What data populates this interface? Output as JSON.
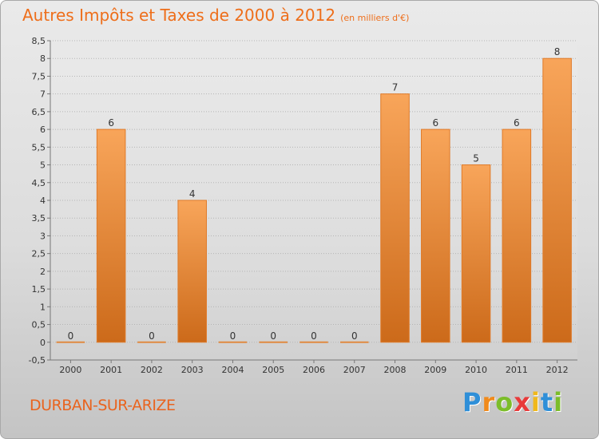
{
  "title": "Autres Impôts et Taxes de 2000 à 2012",
  "unit_note": "(en milliers d'€)",
  "commune": "DURBAN-SUR-ARIZE",
  "brand": {
    "letters": [
      "P",
      "r",
      "o",
      "x",
      "i",
      "t",
      "i"
    ],
    "colors": [
      "#2f8fd8",
      "#f08a1c",
      "#7cbd2a",
      "#e83a3a",
      "#f0b81c",
      "#2f8fd8",
      "#7cbd2a"
    ]
  },
  "colors": {
    "bar_light": "#f8a55a",
    "bar_dark": "#cc6a1a",
    "title": "#ee6e1a"
  },
  "chart_data": {
    "type": "bar",
    "categories": [
      "2000",
      "2001",
      "2002",
      "2003",
      "2004",
      "2005",
      "2006",
      "2007",
      "2008",
      "2009",
      "2010",
      "2011",
      "2012"
    ],
    "values": [
      0,
      6,
      0,
      4,
      0,
      0,
      0,
      0,
      7,
      6,
      5,
      6,
      8
    ],
    "data_labels": [
      "0",
      "6",
      "0",
      "4",
      "0",
      "0",
      "0",
      "0",
      "7",
      "6",
      "5",
      "6",
      "8"
    ],
    "yticks": [
      "-0,5",
      "0",
      "0,5",
      "1",
      "1,5",
      "2",
      "2,5",
      "3",
      "3,5",
      "4",
      "4,5",
      "5",
      "5,5",
      "6",
      "6,5",
      "7",
      "7,5",
      "8",
      "8,5"
    ],
    "ylim": [
      -0.5,
      8.5
    ],
    "grid": true
  }
}
